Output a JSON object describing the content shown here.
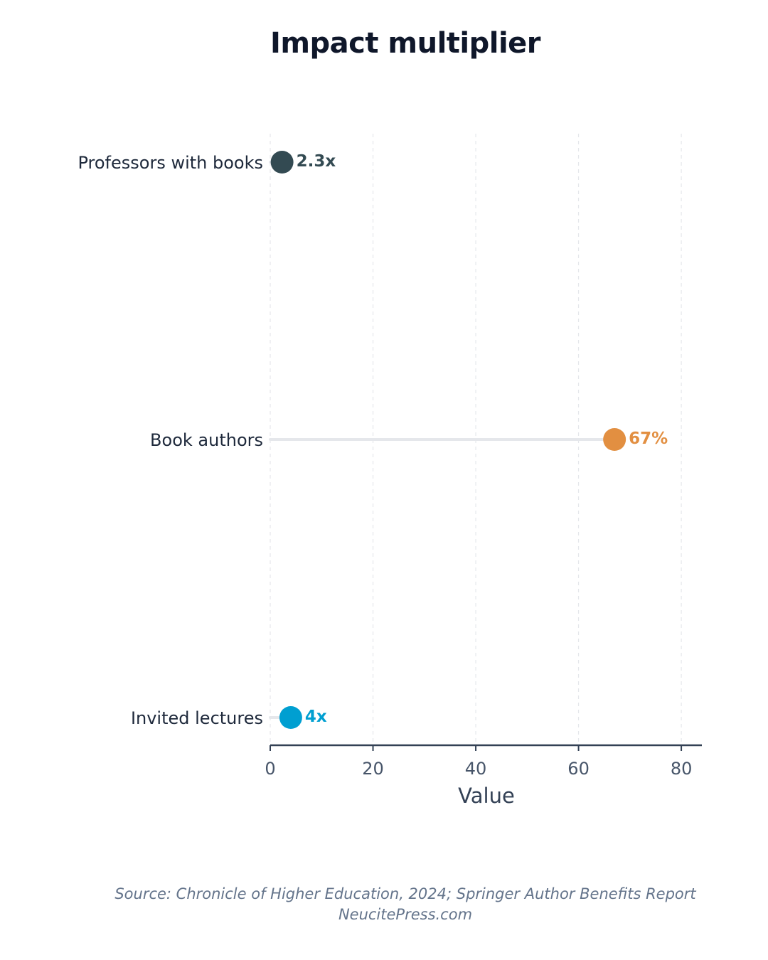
{
  "chart_data": {
    "type": "lollipop",
    "title": "Impact multiplier",
    "xlabel": "Value",
    "ylabel": "",
    "xlim": [
      0,
      84
    ],
    "xticks": [
      0,
      20,
      40,
      60,
      80
    ],
    "grid": true,
    "categories": [
      "Professors with books",
      "Book authors",
      "Invited lectures"
    ],
    "values": [
      2.3,
      67,
      4
    ],
    "value_labels": [
      "2.3x",
      "67%",
      "4x"
    ],
    "colors": [
      "#334a52",
      "#e28f41",
      "#009fd1"
    ]
  },
  "footer": {
    "source": "Source: Chronicle of Higher Education, 2024; Springer Author Benefits Report",
    "credit": "NeucitePress.com"
  },
  "style": {
    "title_color": "#0f172a",
    "stem_color": "#e5e7eb",
    "axis_color": "#334155",
    "grid_color": "#e5e7eb"
  }
}
